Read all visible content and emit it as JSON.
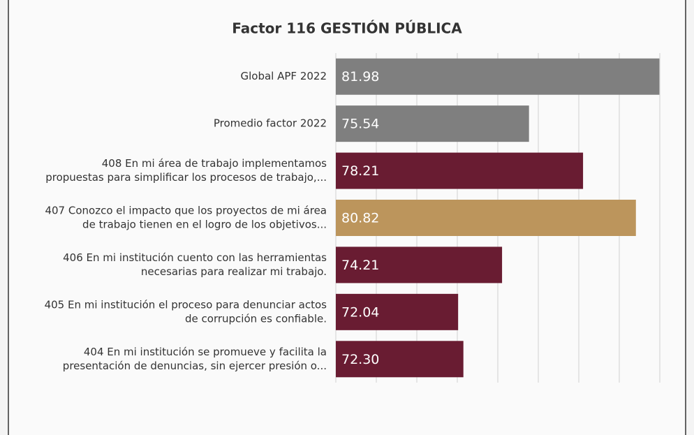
{
  "chart_data": {
    "type": "bar",
    "orientation": "horizontal",
    "title": "Factor 116 GESTIÓN PÚBLICA",
    "categories": [
      [
        "Global APF 2022"
      ],
      [
        "Promedio factor 2022"
      ],
      [
        "408 En mi área de trabajo implementamos",
        "propuestas para simplificar los procesos de trabajo,..."
      ],
      [
        "407 Conozco el impacto que los proyectos de mi área",
        "de trabajo tienen en el logro de los objetivos..."
      ],
      [
        "406 En mi institución cuento con las herramientas",
        "necesarias para realizar mi trabajo."
      ],
      [
        "405 En mi institución el proceso para denunciar actos",
        "de corrupción es confiable."
      ],
      [
        "404 En mi institución se promueve y facilita la",
        "presentación de denuncias, sin ejercer presión o..."
      ]
    ],
    "values": [
      81.98,
      75.54,
      78.21,
      80.82,
      74.21,
      72.04,
      72.3
    ],
    "value_labels": [
      "81.98",
      "75.54",
      "78.21",
      "80.82",
      "74.21",
      "72.04",
      "72.30"
    ],
    "colors": [
      "#7f7f7f",
      "#7f7f7f",
      "#691c32",
      "#bc955c",
      "#691c32",
      "#691c32",
      "#691c32"
    ],
    "xlim": [
      66,
      82
    ],
    "xticks": [
      66,
      68,
      70,
      72,
      74,
      76,
      78,
      80,
      82
    ],
    "grid": true
  }
}
